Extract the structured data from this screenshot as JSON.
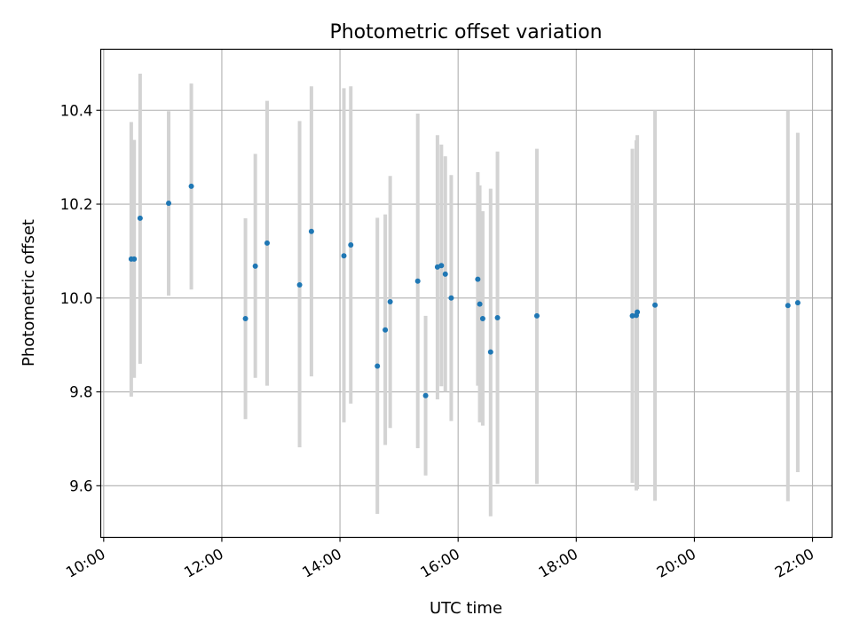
{
  "chart_data": {
    "type": "scatter",
    "title": "Photometric offset variation",
    "xlabel": "UTC time",
    "ylabel": "Photometric offset",
    "x_axis": {
      "unit": "hours",
      "lim": [
        9.95,
        22.33
      ],
      "ticks": [
        10,
        12,
        14,
        16,
        18,
        20,
        22
      ],
      "tick_labels": [
        "10:00",
        "12:00",
        "14:00",
        "16:00",
        "18:00",
        "20:00",
        "22:00"
      ]
    },
    "y_axis": {
      "lim": [
        9.49,
        10.53
      ],
      "ticks": [
        9.6,
        9.8,
        10.0,
        10.2,
        10.4
      ],
      "tick_labels": [
        "9.6",
        "9.8",
        "10.0",
        "10.2",
        "10.4"
      ]
    },
    "grid": true,
    "legend": "none",
    "colors": {
      "point": "#1f77b4",
      "errorbar": "#d3d3d3",
      "grid": "#b0b0b0"
    },
    "points": [
      {
        "x": "10:28",
        "y": 10.083,
        "lo": 9.79,
        "hi": 10.375
      },
      {
        "x": "10:31",
        "y": 10.083,
        "lo": 9.83,
        "hi": 10.337
      },
      {
        "x": "10:37",
        "y": 10.17,
        "lo": 9.86,
        "hi": 10.478
      },
      {
        "x": "11:06",
        "y": 10.202,
        "lo": 10.005,
        "hi": 10.398
      },
      {
        "x": "11:29",
        "y": 10.238,
        "lo": 10.018,
        "hi": 10.457
      },
      {
        "x": "12:24",
        "y": 9.956,
        "lo": 9.742,
        "hi": 10.17
      },
      {
        "x": "12:34",
        "y": 10.068,
        "lo": 9.83,
        "hi": 10.307
      },
      {
        "x": "12:46",
        "y": 10.117,
        "lo": 9.813,
        "hi": 10.42
      },
      {
        "x": "13:19",
        "y": 10.028,
        "lo": 9.682,
        "hi": 10.377
      },
      {
        "x": "13:31",
        "y": 10.142,
        "lo": 9.833,
        "hi": 10.451
      },
      {
        "x": "14:04",
        "y": 10.09,
        "lo": 9.735,
        "hi": 10.447
      },
      {
        "x": "14:11",
        "y": 10.113,
        "lo": 9.775,
        "hi": 10.451
      },
      {
        "x": "14:38",
        "y": 9.855,
        "lo": 9.54,
        "hi": 10.171
      },
      {
        "x": "14:46",
        "y": 9.932,
        "lo": 9.687,
        "hi": 10.178
      },
      {
        "x": "14:51",
        "y": 9.992,
        "lo": 9.723,
        "hi": 10.26
      },
      {
        "x": "15:19",
        "y": 10.036,
        "lo": 9.68,
        "hi": 10.393
      },
      {
        "x": "15:27",
        "y": 9.792,
        "lo": 9.622,
        "hi": 9.962
      },
      {
        "x": "15:39",
        "y": 10.066,
        "lo": 9.784,
        "hi": 10.347
      },
      {
        "x": "15:43",
        "y": 10.069,
        "lo": 9.812,
        "hi": 10.327
      },
      {
        "x": "15:47",
        "y": 10.051,
        "lo": 9.8,
        "hi": 10.302
      },
      {
        "x": "15:53",
        "y": 10.0,
        "lo": 9.738,
        "hi": 10.262
      },
      {
        "x": "16:20",
        "y": 10.04,
        "lo": 9.813,
        "hi": 10.268
      },
      {
        "x": "16:22",
        "y": 9.987,
        "lo": 9.735,
        "hi": 10.24
      },
      {
        "x": "16:25",
        "y": 9.956,
        "lo": 9.728,
        "hi": 10.185
      },
      {
        "x": "16:33",
        "y": 9.885,
        "lo": 9.535,
        "hi": 10.233
      },
      {
        "x": "16:40",
        "y": 9.958,
        "lo": 9.604,
        "hi": 10.312
      },
      {
        "x": "17:20",
        "y": 9.962,
        "lo": 9.604,
        "hi": 10.318
      },
      {
        "x": "18:57",
        "y": 9.962,
        "lo": 9.606,
        "hi": 10.318
      },
      {
        "x": "19:01",
        "y": 9.963,
        "lo": 9.59,
        "hi": 10.336
      },
      {
        "x": "19:02",
        "y": 9.97,
        "lo": 9.593,
        "hi": 10.347
      },
      {
        "x": "19:20",
        "y": 9.985,
        "lo": 9.568,
        "hi": 10.4
      },
      {
        "x": "21:35",
        "y": 9.984,
        "lo": 9.567,
        "hi": 10.4
      },
      {
        "x": "21:45",
        "y": 9.99,
        "lo": 9.629,
        "hi": 10.352
      }
    ]
  }
}
